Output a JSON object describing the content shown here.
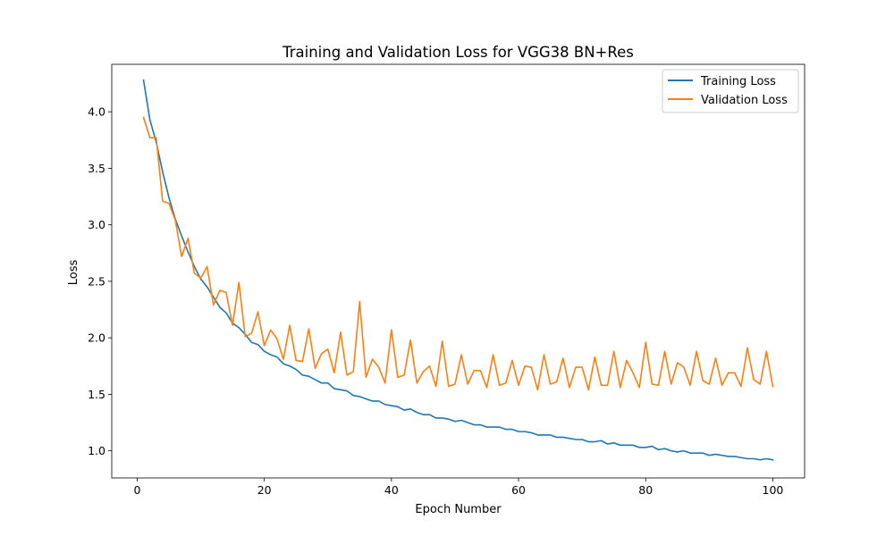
{
  "chart_data": {
    "type": "line",
    "title": "Training and Validation Loss for VGG38 BN+Res",
    "xlabel": "Epoch Number",
    "ylabel": "Loss",
    "xlim": [
      -4,
      105
    ],
    "ylim": [
      0.76,
      4.42
    ],
    "xticks": [
      0,
      20,
      40,
      60,
      80,
      100
    ],
    "xtick_labels": [
      "0",
      "20",
      "40",
      "60",
      "80",
      "100"
    ],
    "yticks": [
      1.0,
      1.5,
      2.0,
      2.5,
      3.0,
      3.5,
      4.0
    ],
    "ytick_labels": [
      "1.0",
      "1.5",
      "2.0",
      "2.5",
      "3.0",
      "3.5",
      "4.0"
    ],
    "grid": false,
    "legend_position": "top-right",
    "x": [
      1,
      2,
      3,
      4,
      5,
      6,
      7,
      8,
      9,
      10,
      11,
      12,
      13,
      14,
      15,
      16,
      17,
      18,
      19,
      20,
      21,
      22,
      23,
      24,
      25,
      26,
      27,
      28,
      29,
      30,
      31,
      32,
      33,
      34,
      35,
      36,
      37,
      38,
      39,
      40,
      41,
      42,
      43,
      44,
      45,
      46,
      47,
      48,
      49,
      50,
      51,
      52,
      53,
      54,
      55,
      56,
      57,
      58,
      59,
      60,
      61,
      62,
      63,
      64,
      65,
      66,
      67,
      68,
      69,
      70,
      71,
      72,
      73,
      74,
      75,
      76,
      77,
      78,
      79,
      80,
      81,
      82,
      83,
      84,
      85,
      86,
      87,
      88,
      89,
      90,
      91,
      92,
      93,
      94,
      95,
      96,
      97,
      98,
      99,
      100
    ],
    "series": [
      {
        "name": "Training Loss",
        "color": "#1f77b4",
        "values": [
          4.28,
          3.93,
          3.73,
          3.47,
          3.24,
          3.05,
          2.9,
          2.76,
          2.63,
          2.52,
          2.45,
          2.36,
          2.27,
          2.22,
          2.13,
          2.09,
          2.03,
          1.96,
          1.94,
          1.88,
          1.85,
          1.83,
          1.77,
          1.75,
          1.72,
          1.67,
          1.66,
          1.63,
          1.6,
          1.6,
          1.55,
          1.54,
          1.53,
          1.49,
          1.48,
          1.46,
          1.44,
          1.44,
          1.41,
          1.4,
          1.39,
          1.36,
          1.37,
          1.34,
          1.32,
          1.32,
          1.29,
          1.29,
          1.28,
          1.26,
          1.27,
          1.25,
          1.23,
          1.23,
          1.21,
          1.21,
          1.21,
          1.19,
          1.19,
          1.17,
          1.17,
          1.16,
          1.14,
          1.14,
          1.14,
          1.12,
          1.12,
          1.11,
          1.1,
          1.1,
          1.08,
          1.08,
          1.09,
          1.06,
          1.07,
          1.05,
          1.05,
          1.05,
          1.03,
          1.03,
          1.04,
          1.01,
          1.02,
          1.0,
          0.99,
          1.0,
          0.98,
          0.98,
          0.98,
          0.96,
          0.97,
          0.96,
          0.95,
          0.95,
          0.94,
          0.93,
          0.93,
          0.92,
          0.93,
          0.92
        ]
      },
      {
        "name": "Validation Loss",
        "color": "#ff7f0e",
        "values": [
          3.95,
          3.77,
          3.77,
          3.21,
          3.19,
          3.04,
          2.72,
          2.88,
          2.57,
          2.53,
          2.63,
          2.29,
          2.42,
          2.4,
          2.11,
          2.49,
          2.01,
          2.04,
          2.23,
          1.93,
          2.07,
          1.99,
          1.81,
          2.11,
          1.8,
          1.79,
          2.08,
          1.73,
          1.86,
          1.9,
          1.69,
          2.05,
          1.67,
          1.7,
          2.32,
          1.65,
          1.81,
          1.74,
          1.6,
          2.07,
          1.65,
          1.67,
          1.98,
          1.6,
          1.7,
          1.75,
          1.57,
          1.97,
          1.57,
          1.59,
          1.85,
          1.59,
          1.71,
          1.71,
          1.56,
          1.85,
          1.58,
          1.6,
          1.8,
          1.58,
          1.75,
          1.74,
          1.54,
          1.85,
          1.59,
          1.61,
          1.82,
          1.56,
          1.74,
          1.74,
          1.54,
          1.83,
          1.58,
          1.58,
          1.88,
          1.56,
          1.8,
          1.69,
          1.56,
          1.96,
          1.59,
          1.58,
          1.88,
          1.59,
          1.78,
          1.74,
          1.58,
          1.88,
          1.62,
          1.59,
          1.82,
          1.58,
          1.69,
          1.69,
          1.57,
          1.91,
          1.63,
          1.59,
          1.88,
          1.57
        ]
      }
    ]
  }
}
